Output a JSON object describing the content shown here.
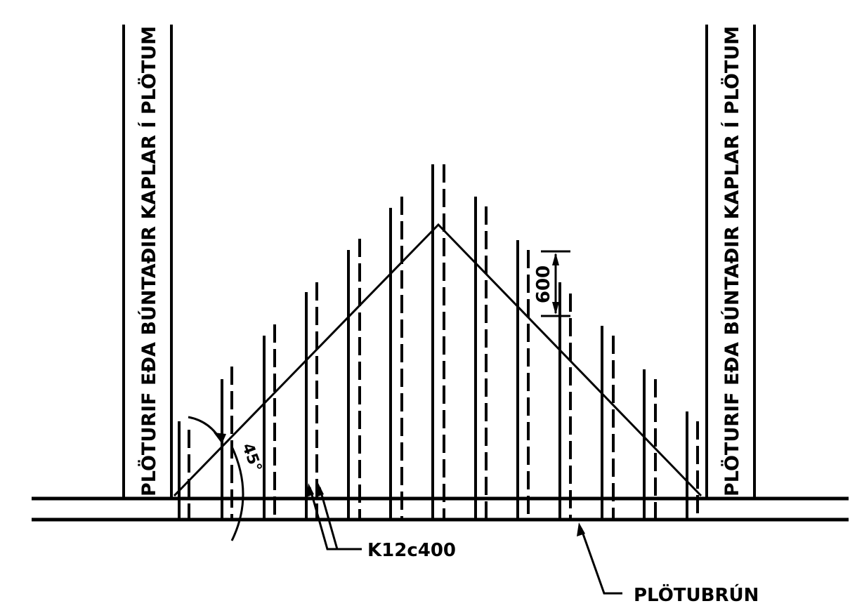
{
  "labels": {
    "band_left": "PLÖTURIF EÐA BÚNTAÐIR KAPLAR Í PLÖTUM",
    "band_right": "PLÖTURIF EÐA BÚNTAÐIR KAPLAR Í PLÖTUM",
    "spacing_dimension": "600",
    "angle": "45°",
    "bar_callout": "K12c400",
    "edge_callout": "PLÖTUBRÚN"
  },
  "colors": {
    "line": "#000000",
    "background": "#ffffff"
  }
}
